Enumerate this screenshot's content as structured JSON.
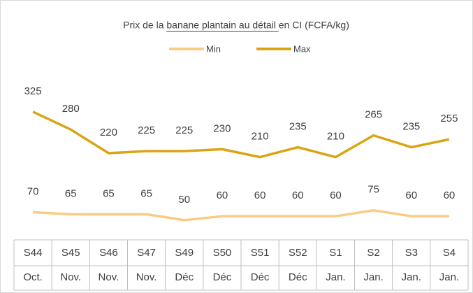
{
  "chart_data": {
    "type": "line",
    "title": "Prix de la banane plantain au détail en CI (FCFA/kg)",
    "categories": [
      [
        "S44",
        "Oct."
      ],
      [
        "S45",
        "Nov."
      ],
      [
        "S46",
        "Nov."
      ],
      [
        "S47",
        "Nov."
      ],
      [
        "S49",
        "Déc"
      ],
      [
        "S50",
        "Déc"
      ],
      [
        "S51",
        "Déc"
      ],
      [
        "S52",
        "Déc"
      ],
      [
        "S1",
        "Jan."
      ],
      [
        "S2",
        "Jan."
      ],
      [
        "S3",
        "Jan."
      ],
      [
        "S4",
        "Jan."
      ]
    ],
    "series": [
      {
        "name": "Min",
        "color": "#f9cc84",
        "values": [
          70,
          65,
          65,
          65,
          50,
          60,
          60,
          60,
          60,
          75,
          60,
          60
        ]
      },
      {
        "name": "Max",
        "color": "#d9a514",
        "values": [
          325,
          280,
          220,
          225,
          225,
          230,
          210,
          235,
          210,
          265,
          235,
          255
        ]
      }
    ],
    "ylim": [
      0,
      440
    ],
    "legend": "top"
  }
}
